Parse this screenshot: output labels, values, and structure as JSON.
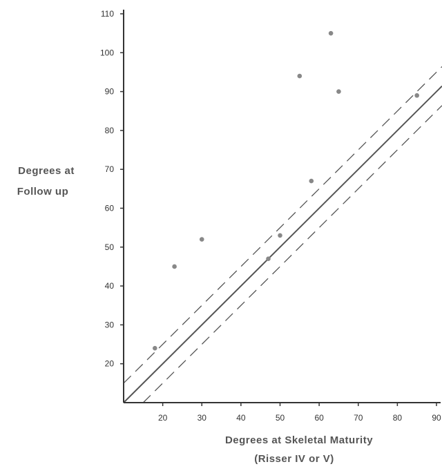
{
  "chart_data": {
    "type": "scatter",
    "title": "",
    "xlabel": "Degrees at Skeletal Maturity",
    "xlabel_sub": "(Risser IV or V)",
    "ylabel_line1": "Degrees at",
    "ylabel_line2": "Follow up",
    "xlim": [
      10,
      90
    ],
    "ylim": [
      10,
      110
    ],
    "x_ticks": [
      20,
      30,
      40,
      50,
      60,
      70,
      80,
      90
    ],
    "y_ticks": [
      20,
      30,
      40,
      50,
      60,
      70,
      80,
      90,
      100,
      110
    ],
    "x_tick_labels": [
      "20",
      "30",
      "40",
      "50",
      "60",
      "70",
      "80",
      "90"
    ],
    "y_tick_labels": [
      "20",
      "30",
      "40",
      "50",
      "60",
      "70",
      "80",
      "90",
      "100",
      "110"
    ],
    "grid": false,
    "points": [
      {
        "x": 18,
        "y": 24
      },
      {
        "x": 23,
        "y": 45
      },
      {
        "x": 30,
        "y": 52
      },
      {
        "x": 47,
        "y": 47
      },
      {
        "x": 50,
        "y": 53
      },
      {
        "x": 55,
        "y": 94
      },
      {
        "x": 58,
        "y": 67
      },
      {
        "x": 63,
        "y": 105
      },
      {
        "x": 65,
        "y": 90
      },
      {
        "x": 85,
        "y": 89
      }
    ],
    "reference_lines": [
      {
        "style": "solid",
        "x1": 10,
        "y1": 10,
        "x2": 90,
        "y2": 90
      },
      {
        "style": "dashed",
        "x1": 10,
        "y1": 15,
        "x2": 90,
        "y2": 95
      },
      {
        "style": "dashed",
        "x1": 15,
        "y1": 10,
        "x2": 90,
        "y2": 85
      }
    ],
    "colors": {
      "axis": "#333333",
      "line": "#555555",
      "point": "#888888"
    }
  }
}
